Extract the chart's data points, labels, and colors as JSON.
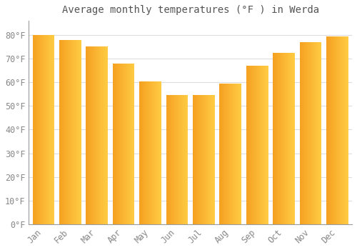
{
  "title": "Average monthly temperatures (°F ) in Werda",
  "months": [
    "Jan",
    "Feb",
    "Mar",
    "Apr",
    "May",
    "Jun",
    "Jul",
    "Aug",
    "Sep",
    "Oct",
    "Nov",
    "Dec"
  ],
  "values": [
    80,
    78,
    75,
    68,
    60.5,
    54.5,
    54.5,
    59.5,
    67,
    72.5,
    77,
    79.5
  ],
  "bar_color_left": "#F5A020",
  "bar_color_right": "#FFCC44",
  "background_color": "#FFFFFF",
  "grid_color": "#DDDDDD",
  "yticks": [
    0,
    10,
    20,
    30,
    40,
    50,
    60,
    70,
    80
  ],
  "ylim": [
    0,
    86
  ],
  "title_fontsize": 10,
  "tick_fontsize": 8.5,
  "bar_width": 0.82
}
